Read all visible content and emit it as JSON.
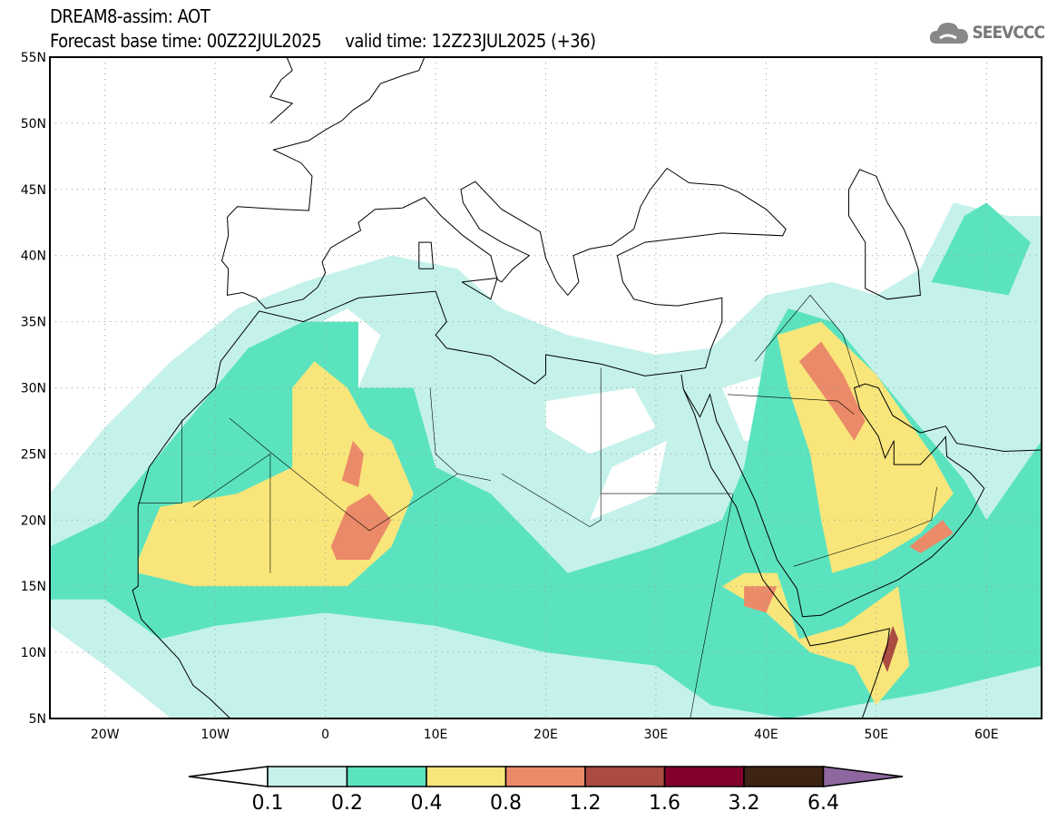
{
  "header": {
    "title": "DREAM8-assim: AOT",
    "subtitle": "Forecast base time: 00Z22JUL2025     valid time: 12Z23JUL2025 (+36)"
  },
  "logo": {
    "text": "SEEVCCC"
  },
  "map": {
    "lon_range": [
      -25,
      65
    ],
    "lat_range": [
      5,
      55
    ],
    "lat_labels": [
      "55N",
      "50N",
      "45N",
      "40N",
      "35N",
      "30N",
      "25N",
      "20N",
      "15N",
      "10N",
      "5N"
    ],
    "lon_labels": [
      "20W",
      "10W",
      "0",
      "10E",
      "20E",
      "30E",
      "40E",
      "50E",
      "60E"
    ]
  },
  "legend": {
    "labels": [
      "0.1",
      "0.2",
      "0.4",
      "0.8",
      "1.2",
      "1.6",
      "3.2",
      "6.4"
    ],
    "colors": [
      "#ffffff",
      "#c4f2ea",
      "#5be3bf",
      "#f8e67b",
      "#eb8a68",
      "#ab4b42",
      "#83002d",
      "#3d2314",
      "#8e67a1"
    ]
  }
}
